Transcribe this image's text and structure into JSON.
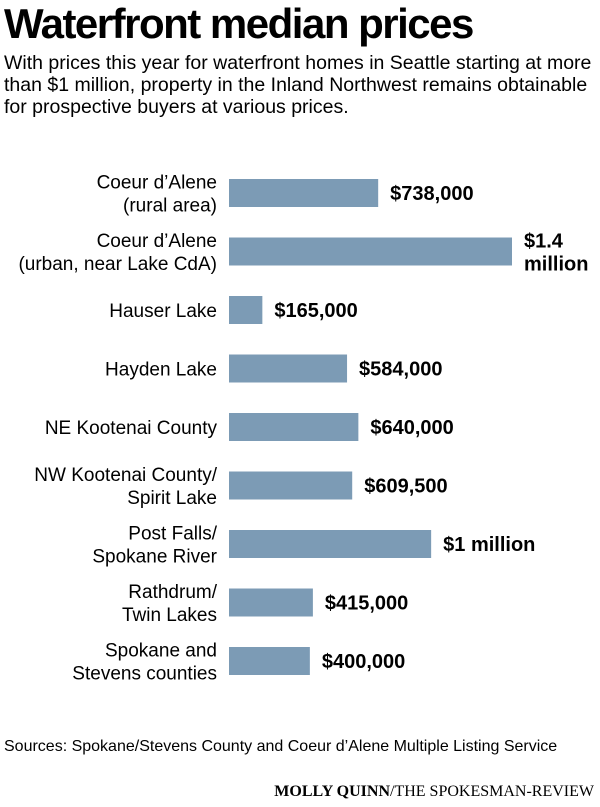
{
  "header": {
    "title": "Waterfront median prices",
    "subtitle": "With prices this year for waterfront homes in Seattle starting at more than $1 million, property in the Inland Northwest remains obtainable for prospective buyers at various prices."
  },
  "footer": {
    "sources": "Sources: Spokane/Stevens County and Coeur d’Alene Multiple Listing Service",
    "credit_name": "MOLLY QUINN",
    "credit_org": "/THE SPOKESMAN-REVIEW"
  },
  "chart_data": {
    "type": "bar",
    "orientation": "horizontal",
    "title": "Waterfront median prices",
    "unit": "$",
    "bar_color": "#7c9bb5",
    "grid": false,
    "categories": [
      [
        "Coeur d’Alene",
        "(rural area)"
      ],
      [
        "Coeur d’Alene",
        "(urban, near Lake CdA)"
      ],
      [
        "Hauser Lake"
      ],
      [
        "Hayden Lake"
      ],
      [
        "NE Kootenai County"
      ],
      [
        "NW Kootenai County/",
        "Spirit Lake"
      ],
      [
        "Post Falls/",
        "Spokane River"
      ],
      [
        "Rathdrum/",
        "Twin Lakes"
      ],
      [
        "Spokane and",
        "Stevens counties"
      ]
    ],
    "values": [
      738000,
      1400000,
      165000,
      584000,
      640000,
      609500,
      1000000,
      415000,
      400000
    ],
    "value_labels": [
      [
        "$738,000"
      ],
      [
        "$1.4",
        "million"
      ],
      [
        "$165,000"
      ],
      [
        "$584,000"
      ],
      [
        "$640,000"
      ],
      [
        "$609,500"
      ],
      [
        "$1 million"
      ],
      [
        "$415,000"
      ],
      [
        "$400,000"
      ]
    ]
  }
}
